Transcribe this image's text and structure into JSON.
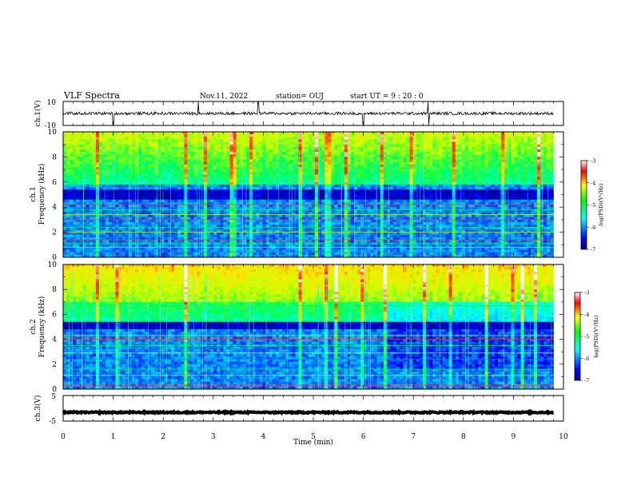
{
  "header": {
    "title": "VLF Spectra",
    "date": "Nov.11, 2022",
    "station": "station= OUJ",
    "start": "start  UT  =   9 : 20 : 0"
  },
  "chart_data": [
    {
      "panel": "ch1-waveform",
      "type": "line",
      "ylabel": "ch.1(V)",
      "ylim": [
        -10,
        10
      ],
      "y_ticks": [
        "10",
        "-10"
      ],
      "xlim": [
        0,
        10
      ],
      "data_end_min": 9.8,
      "baseline_v": 0,
      "noise_amplitude_v": 1.2,
      "spike_times_min": [
        1.0,
        2.7,
        3.9,
        6.0,
        7.3
      ],
      "color": "#000000"
    },
    {
      "panel": "ch1-spectrogram",
      "type": "heatmap",
      "ylabel": "ch.1\nFrequency  (kHz)",
      "ylim": [
        0,
        10
      ],
      "y_ticks": [
        "0",
        "2",
        "4",
        "6",
        "8",
        "10"
      ],
      "xlim": [
        0,
        10
      ],
      "data_end_min": 9.8,
      "colorbar_label": "log(PSD)(V²/Hz)",
      "colorbar_range": [
        -7,
        -3
      ],
      "colorbar_ticks": [
        "-3",
        "-4",
        "-5",
        "-6",
        "-7"
      ],
      "hiss_band_khz": [
        5.8,
        10
      ],
      "quiet_band_khz": [
        4.6,
        5.4
      ],
      "lines_khz": [
        0.4,
        0.8,
        1.1,
        1.4,
        2.0,
        2.4,
        3.0,
        3.4,
        3.8,
        4.2
      ]
    },
    {
      "panel": "ch2-spectrogram",
      "type": "heatmap",
      "ylabel": "ch.2\nFrequency  (kHz)",
      "ylim": [
        0,
        10
      ],
      "y_ticks": [
        "0",
        "2",
        "4",
        "6",
        "8",
        "10"
      ],
      "xlim": [
        0,
        10
      ],
      "data_end_min": 9.8,
      "colorbar_label": "log(PSD)(V²/Hz)",
      "colorbar_range": [
        -7,
        -3
      ],
      "colorbar_ticks": [
        "-3",
        "-4",
        "-5",
        "-6",
        "-7"
      ],
      "hiss_band_khz": [
        5.5,
        10
      ],
      "quiet_band_khz": [
        4.8,
        5.3
      ],
      "quiet_after_min": 6.5,
      "lines_khz": [
        0.3,
        1.1,
        1.6,
        2.4,
        2.9,
        3.5,
        4.0,
        4.3,
        6.7
      ]
    },
    {
      "panel": "ch3-waveform",
      "type": "line",
      "ylabel": "ch.3(V)",
      "ylim": [
        -5,
        5
      ],
      "y_ticks": [
        "5",
        "-5"
      ],
      "xlim": [
        0,
        10
      ],
      "data_end_min": 9.8,
      "baseline_v": -1.6,
      "noise_amplitude_v": 0.25,
      "color": "#000000"
    }
  ],
  "x_axis": {
    "label": "Time  (min)",
    "ticks": [
      "0",
      "1",
      "2",
      "3",
      "4",
      "5",
      "6",
      "7",
      "8",
      "9",
      "10"
    ]
  }
}
